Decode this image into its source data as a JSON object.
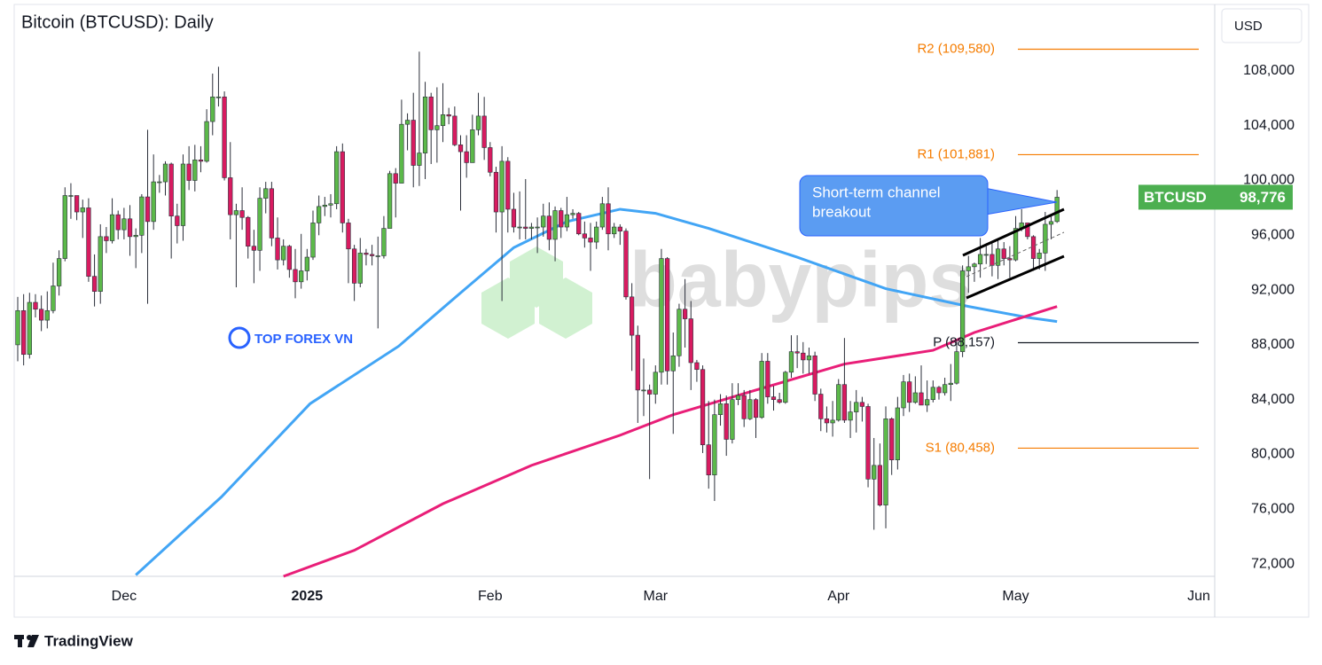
{
  "chart_data": {
    "type": "candlestick",
    "title": "Bitcoin (BTCUSD): Daily",
    "currency": "USD",
    "series": [
      {
        "name": "BTCUSD",
        "up_color": "#5cb94a",
        "down_color": "#d81b60",
        "wick_color": "#2a2e39",
        "open": [
          88000,
          90500,
          87300,
          91100,
          90600,
          89800,
          90500,
          92300,
          94300,
          98900,
          98900,
          97700,
          98000,
          93000,
          91900,
          95900,
          95600,
          97500,
          96400,
          97200,
          95900,
          96000,
          98800,
          97000,
          99900,
          99900,
          101200,
          97400,
          96700,
          101200,
          100000,
          101500,
          101400,
          104300,
          106100,
          106100,
          100200,
          97500,
          97800,
          97300,
          95200,
          94900,
          98700,
          99400,
          95800,
          94200,
          95200,
          93500,
          92600,
          93400,
          94400,
          96900,
          98100,
          98200,
          98300,
          102100,
          96900,
          95000,
          92500,
          94700,
          94600,
          94500,
          94500,
          96500,
          100500,
          99800,
          104100,
          104400,
          101100,
          102000,
          106100,
          103700,
          104000,
          104800,
          104700,
          102600,
          102100,
          101300,
          103700,
          104700,
          102400,
          100600,
          97700,
          101400,
          97900,
          96600,
          96600,
          96500,
          96600,
          96600,
          97400,
          95700,
          97800,
          96600,
          97500,
          97600,
          96100,
          95800,
          95500,
          96600,
          98300,
          96100,
          96600,
          96300,
          91500,
          88700,
          84700,
          84700,
          84400,
          86000,
          94300,
          86100,
          87200,
          90600,
          89900,
          86700,
          86200,
          80700,
          78500,
          82900,
          83700,
          81100,
          84000,
          84300,
          82600,
          84000,
          82700,
          86800,
          84200,
          84000,
          83800,
          86000,
          87500,
          87400,
          86900,
          87200,
          84400,
          82600,
          82300,
          82500,
          85100,
          82500,
          83100,
          83800,
          83500,
          78200,
          79200,
          76300,
          82600,
          79600,
          83400,
          85300,
          83800,
          84500,
          83600,
          84000,
          84900,
          84500,
          85100,
          85200,
          87500,
          93400,
          93700,
          93900,
          94600,
          94600,
          93800,
          95000,
          94300,
          94200,
          96500,
          96900,
          95900,
          94300,
          94700,
          96800,
          97000
        ],
        "high": [
          91500,
          91700,
          91800,
          91700,
          91600,
          91900,
          94000,
          94900,
          99500,
          99800,
          98700,
          98600,
          98700,
          94600,
          96800,
          96600,
          98700,
          97800,
          98000,
          98200,
          96500,
          99000,
          103700,
          101900,
          100400,
          101400,
          101300,
          98300,
          101900,
          102500,
          102600,
          102500,
          105200,
          107800,
          108300,
          106500,
          102800,
          98300,
          99500,
          97400,
          96400,
          99500,
          99900,
          99900,
          97300,
          95700,
          95300,
          95000,
          96100,
          95000,
          97800,
          98900,
          98800,
          99000,
          102500,
          102700,
          97200,
          95300,
          95800,
          95000,
          95300,
          95900,
          97400,
          100700,
          100900,
          105900,
          104900,
          106400,
          109400,
          107200,
          106400,
          106800,
          107100,
          105300,
          105400,
          103300,
          103300,
          104800,
          106400,
          106100,
          102800,
          101000,
          102500,
          101700,
          99100,
          99200,
          100100,
          96900,
          97300,
          98300,
          98400,
          98100,
          98000,
          98800,
          97900,
          97700,
          97000,
          96900,
          97000,
          98800,
          99500,
          96900,
          96800,
          96500,
          92500,
          89400,
          87000,
          85100,
          86500,
          95000,
          94400,
          88900,
          91000,
          92800,
          91200,
          86900,
          86500,
          83900,
          84000,
          84400,
          84300,
          85200,
          85200,
          84700,
          84700,
          84100,
          87400,
          87400,
          85000,
          84500,
          86100,
          88700,
          88700,
          88200,
          87800,
          87500,
          84800,
          83500,
          83900,
          85500,
          88500,
          83900,
          84700,
          84200,
          83700,
          81200,
          80800,
          83500,
          82700,
          84200,
          85800,
          85900,
          85700,
          86500,
          85400,
          85400,
          85000,
          85600,
          86600,
          88400,
          93800,
          94500,
          94000,
          95800,
          95300,
          95400,
          95600,
          95500,
          95200,
          97400,
          97900,
          96900,
          96000,
          95000,
          97700,
          97400,
          99300
        ],
        "low": [
          86800,
          86500,
          87000,
          90000,
          89000,
          89200,
          90300,
          91600,
          94100,
          97200,
          97100,
          95800,
          92600,
          90800,
          91000,
          94700,
          95400,
          95700,
          95700,
          94500,
          93600,
          94700,
          91000,
          96400,
          99100,
          98900,
          94300,
          95400,
          95600,
          99300,
          99200,
          100600,
          101300,
          103300,
          105400,
          100000,
          95700,
          92200,
          96400,
          94300,
          92500,
          93400,
          97600,
          95200,
          93500,
          93800,
          92900,
          91400,
          92100,
          92700,
          94200,
          96000,
          97400,
          97300,
          97900,
          96200,
          92500,
          91200,
          92200,
          93800,
          93800,
          89200,
          94300,
          96500,
          97300,
          99800,
          102200,
          99500,
          99600,
          100100,
          101200,
          101300,
          102800,
          104100,
          102500,
          97800,
          100200,
          101300,
          103300,
          101500,
          100300,
          96200,
          91200,
          96200,
          96200,
          95700,
          95700,
          95700,
          94700,
          95900,
          94900,
          94100,
          95800,
          96300,
          97200,
          96000,
          95100,
          93400,
          95000,
          96400,
          94900,
          95800,
          95300,
          91300,
          86100,
          82300,
          82800,
          78200,
          83700,
          85100,
          85100,
          81500,
          86400,
          87800,
          84700,
          85300,
          80100,
          77500,
          76600,
          82100,
          79900,
          80800,
          83600,
          82000,
          82500,
          81200,
          82600,
          83700,
          83200,
          83700,
          83700,
          85600,
          86300,
          85900,
          85900,
          83900,
          81700,
          81600,
          81300,
          82400,
          82300,
          81200,
          81600,
          82400,
          77600,
          74500,
          76200,
          74600,
          78500,
          78900,
          82800,
          83100,
          83700,
          83600,
          83100,
          83800,
          84000,
          84300,
          83900,
          85100,
          87100,
          91800,
          92600,
          92900,
          93900,
          93000,
          92800,
          93800,
          92900,
          94100,
          96300,
          95700,
          93400,
          93500,
          93400,
          95700,
          96900
        ],
        "close": [
          90500,
          87300,
          91100,
          90600,
          89800,
          90500,
          92300,
          94300,
          98900,
          98900,
          97700,
          98000,
          93000,
          91900,
          95900,
          95600,
          97500,
          96400,
          97200,
          95900,
          96000,
          98800,
          97000,
          99900,
          99900,
          101200,
          97400,
          96700,
          101200,
          100000,
          101500,
          101400,
          104300,
          106100,
          106100,
          100200,
          97500,
          97800,
          97300,
          95200,
          94900,
          98700,
          99400,
          95800,
          94200,
          95200,
          93500,
          92600,
          93400,
          94400,
          96900,
          98100,
          98200,
          98300,
          102100,
          96900,
          95000,
          92500,
          94700,
          94600,
          94500,
          94500,
          96500,
          100500,
          99800,
          104100,
          104400,
          101100,
          102000,
          106100,
          103700,
          104000,
          104800,
          104700,
          102600,
          102100,
          101300,
          103700,
          104700,
          102400,
          100600,
          97700,
          101400,
          97900,
          96600,
          96600,
          96500,
          96600,
          96600,
          97400,
          95700,
          97800,
          96600,
          97500,
          97600,
          96100,
          95800,
          95500,
          96600,
          98300,
          96100,
          96600,
          96300,
          91500,
          88700,
          84700,
          84700,
          84400,
          86000,
          94300,
          86100,
          87200,
          90600,
          89900,
          86700,
          86200,
          80700,
          78500,
          82900,
          83700,
          81100,
          84000,
          84300,
          82600,
          84000,
          82700,
          86800,
          84200,
          84000,
          83800,
          86000,
          87500,
          87400,
          86900,
          87200,
          84400,
          82600,
          82300,
          82500,
          85100,
          82500,
          83100,
          83800,
          83500,
          78200,
          79200,
          76300,
          82600,
          79600,
          83400,
          85300,
          83800,
          84500,
          83600,
          84000,
          84900,
          84500,
          85100,
          85200,
          87500,
          93400,
          93700,
          93900,
          94600,
          94600,
          93800,
          95000,
          94300,
          94200,
          96500,
          96900,
          95900,
          94300,
          94700,
          96800,
          97000,
          98776
        ]
      }
    ],
    "moving_averages": [
      {
        "color": "#42a5f5",
        "x": [
          20,
          34.5,
          49.5,
          64.5,
          75,
          84,
          93,
          102,
          108,
          117,
          132,
          147,
          161,
          171,
          176
        ],
        "values": [
          71200,
          76900,
          83700,
          87900,
          91800,
          95100,
          97000,
          97900,
          97600,
          96500,
          94400,
          92100,
          90800,
          90000,
          89700
        ]
      },
      {
        "color": "#e91e78",
        "x": [
          45,
          57,
          72,
          87,
          102,
          111,
          125,
          140,
          155,
          162,
          176
        ],
        "values": [
          71100,
          73000,
          76400,
          79200,
          81400,
          82900,
          84700,
          86600,
          87600,
          88900,
          90800
        ]
      }
    ],
    "levels": [
      {
        "label": "R2 (109,580)",
        "value": 109580,
        "color": "#f57c00"
      },
      {
        "label": "R1 (101,881)",
        "value": 101881,
        "color": "#f57c00"
      },
      {
        "label": "P (88,157)",
        "value": 88157,
        "color": "#131722"
      },
      {
        "label": "S1 (80,458)",
        "value": 80458,
        "color": "#f57c00"
      }
    ],
    "last_price": {
      "value": 98776,
      "label": "98,776"
    },
    "annotation": [
      "Short-term channel",
      "breakout"
    ],
    "watermarks": [
      "babypips",
      "TOP FOREX VN"
    ],
    "source": "TradingView",
    "xlim": [
      -0.6,
      202.7
    ],
    "xticks": [
      {
        "value": 18,
        "label": "Dec"
      },
      {
        "value": 49,
        "label": "2025"
      },
      {
        "value": 80,
        "label": "Feb"
      },
      {
        "value": 108,
        "label": "Mar"
      },
      {
        "value": 139,
        "label": "Apr"
      },
      {
        "value": 169,
        "label": "May"
      },
      {
        "value": 200,
        "label": "Jun"
      }
    ],
    "ylim": [
      71100,
      112850
    ],
    "yticks": [
      {
        "value": 72000,
        "label": "72,000"
      },
      {
        "value": 76000,
        "label": "76,000"
      },
      {
        "value": 80000,
        "label": "80,000"
      },
      {
        "value": 84000,
        "label": "84,000"
      },
      {
        "value": 88000,
        "label": "88,000"
      },
      {
        "value": 92000,
        "label": "92,000"
      },
      {
        "value": 96000,
        "label": "96,000"
      },
      {
        "value": 100000,
        "label": "100,000"
      },
      {
        "value": 104000,
        "label": "104,000"
      },
      {
        "value": 108000,
        "label": "108,000"
      }
    ],
    "grid": false
  }
}
